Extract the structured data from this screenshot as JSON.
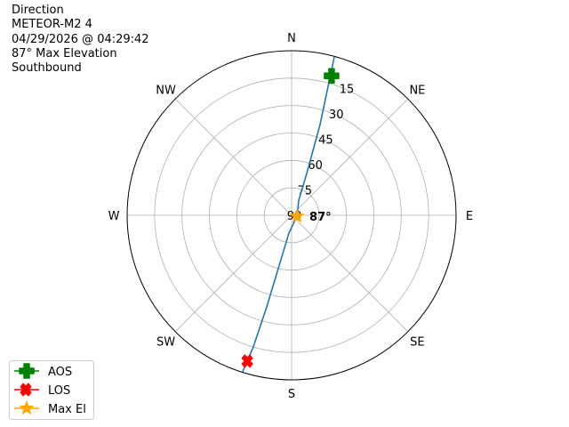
{
  "title_lines": [
    "Direction",
    "METEOR-M2 4",
    "04/29/2026 @ 04:29:42",
    "87° Max Elevation",
    "Southbound"
  ],
  "chart_data": {
    "type": "polar",
    "theta_direction": "clockwise",
    "theta_zero": "N",
    "angle_labels": [
      "N",
      "NE",
      "E",
      "SE",
      "S",
      "SW",
      "W",
      "NW"
    ],
    "radial_axis": "elevation (deg), 90 at center, 0 at edge",
    "radial_ticks": [
      "15",
      "30",
      "45",
      "60",
      "75",
      "90"
    ],
    "rlim": [
      90,
      0
    ],
    "grid": true,
    "track": [
      [
        15.1,
        0.3
      ],
      [
        17.4,
        38.0
      ],
      [
        19.9,
        65.7
      ],
      [
        25.2,
        80.9
      ],
      [
        101,
        87
      ],
      [
        188.5,
        80.2
      ],
      [
        193.8,
        63.4
      ],
      [
        195.2,
        38.1
      ],
      [
        196.2,
        15.1
      ],
      [
        197.4,
        0.3
      ]
    ],
    "markers": [
      {
        "name": "AOS",
        "az": 16,
        "el": 10.7,
        "color": "#008000",
        "shape": "plus"
      },
      {
        "name": "LOS",
        "az": 196.6,
        "el": 6.8,
        "color": "#ff0000",
        "shape": "x"
      },
      {
        "name": "Max El",
        "az": 101,
        "el": 87,
        "color": "#ffa500",
        "shape": "star"
      }
    ],
    "annotation": "87°",
    "track_color": "#1f77b4",
    "legend_position": "bottom-left"
  }
}
